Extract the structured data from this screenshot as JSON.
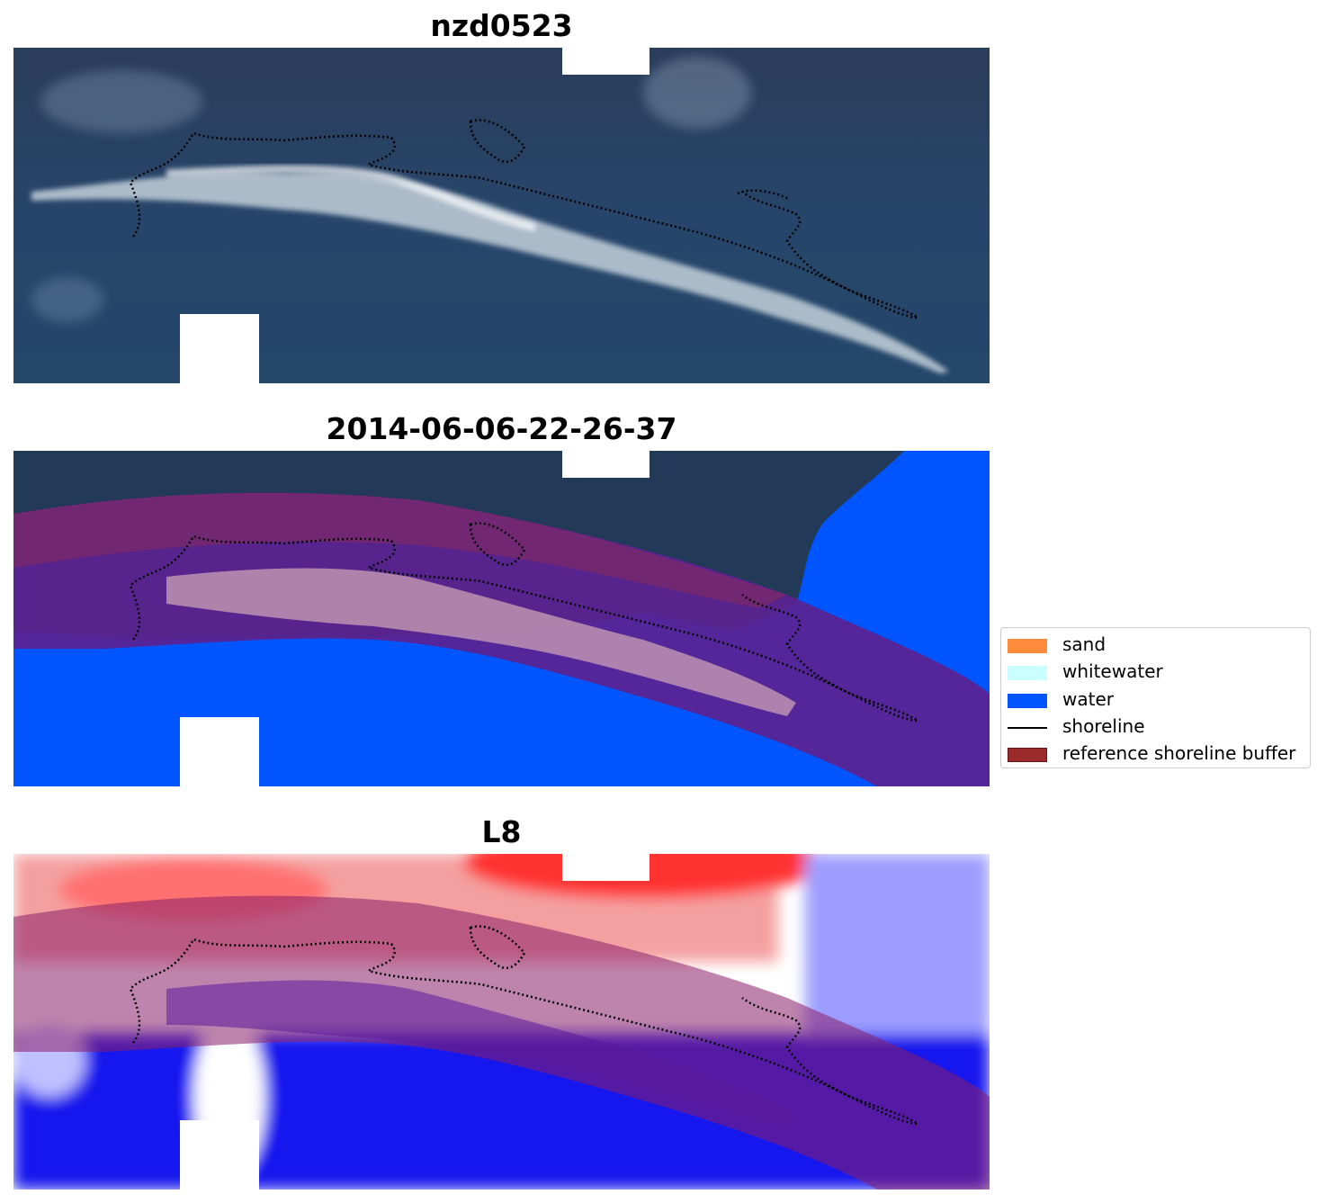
{
  "panels": [
    {
      "title": "nzd0523"
    },
    {
      "title": "2014-06-06-22-26-37"
    },
    {
      "title": "L8"
    }
  ],
  "legend": {
    "items": [
      {
        "label": "sand",
        "color": "#ff8c3c"
      },
      {
        "label": "whitewater",
        "color": "#c9ffff"
      },
      {
        "label": "water",
        "color": "#0055ff"
      },
      {
        "label": "shoreline",
        "color": "#000000"
      },
      {
        "label": "reference shoreline buffer",
        "color": "#9b2a2a"
      }
    ]
  },
  "colors": {
    "dark_sea": "#1f3556",
    "surf": "#e8eef2",
    "buffer_overlay": "#5b2390",
    "classified_water": "#0055ff",
    "index_positive": "#ff2020",
    "index_negative": "#1010ff"
  }
}
